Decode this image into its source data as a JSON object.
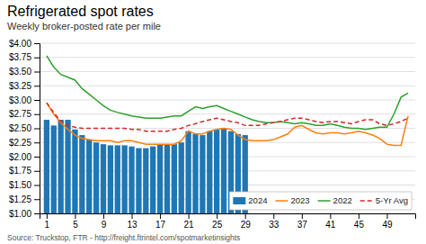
{
  "chart_data": {
    "type": "bar",
    "title": "Refrigerated spot rates",
    "subtitle": "Weekly broker-posted rate per mile",
    "annotations": [
      "Source: Truckstop, FTR - http://freight.ftrintel.com/spotmarketinsights"
    ],
    "x": [
      1,
      2,
      3,
      4,
      5,
      6,
      7,
      8,
      9,
      10,
      11,
      12,
      13,
      14,
      15,
      16,
      17,
      18,
      19,
      20,
      21,
      22,
      23,
      24,
      25,
      26,
      27,
      28,
      29,
      30,
      31,
      32,
      33,
      34,
      35,
      36,
      37,
      38,
      39,
      40,
      41,
      42,
      43,
      44,
      45,
      46,
      47,
      48,
      49,
      50,
      51,
      52
    ],
    "xlim": [
      0,
      53
    ],
    "xticks": [
      1,
      5,
      9,
      13,
      17,
      21,
      25,
      29,
      33,
      37,
      41,
      45,
      49
    ],
    "ylim": [
      1.0,
      4.0
    ],
    "yticks": [
      {
        "value": 1.0,
        "label": "$1.00"
      },
      {
        "value": 1.25,
        "label": "$1.25"
      },
      {
        "value": 1.5,
        "label": "$1.50"
      },
      {
        "value": 1.75,
        "label": "$1.75"
      },
      {
        "value": 2.0,
        "label": "$2.00"
      },
      {
        "value": 2.25,
        "label": "$2.25"
      },
      {
        "value": 2.5,
        "label": "$2.50"
      },
      {
        "value": 2.75,
        "label": "$2.75"
      },
      {
        "value": 3.0,
        "label": "$3.00"
      },
      {
        "value": 3.25,
        "label": "$3.25"
      },
      {
        "value": 3.5,
        "label": "$3.50"
      },
      {
        "value": 3.75,
        "label": "$3.75"
      },
      {
        "value": 4.0,
        "label": "$4.00"
      }
    ],
    "grid": true,
    "legend": "lower right",
    "series": [
      {
        "name": "2024",
        "type": "bar",
        "values": [
          2.65,
          2.55,
          2.65,
          2.65,
          2.48,
          2.38,
          2.3,
          2.25,
          2.22,
          2.2,
          2.2,
          2.2,
          2.18,
          2.15,
          2.15,
          2.18,
          2.22,
          2.22,
          2.22,
          2.25,
          2.45,
          2.4,
          2.38,
          2.45,
          2.48,
          2.5,
          2.45,
          2.4,
          2.38,
          null,
          null,
          null,
          null,
          null,
          null,
          null,
          null,
          null,
          null,
          null,
          null,
          null,
          null,
          null,
          null,
          null,
          null,
          null,
          null,
          null,
          null,
          null
        ]
      },
      {
        "name": "2023",
        "type": "line",
        "line_style": "solid",
        "values": [
          2.95,
          2.75,
          2.6,
          2.48,
          2.38,
          2.32,
          2.3,
          2.28,
          2.28,
          2.28,
          2.25,
          2.28,
          2.28,
          2.25,
          2.22,
          2.22,
          2.22,
          2.22,
          2.22,
          2.28,
          2.45,
          2.4,
          2.4,
          2.45,
          2.48,
          2.5,
          2.48,
          2.38,
          2.3,
          2.28,
          2.28,
          2.28,
          2.3,
          2.35,
          2.4,
          2.52,
          2.55,
          2.48,
          2.42,
          2.4,
          2.42,
          2.42,
          2.4,
          2.42,
          2.45,
          2.42,
          2.38,
          2.32,
          2.22,
          2.2,
          2.2,
          2.72
        ]
      },
      {
        "name": "2022",
        "type": "line",
        "line_style": "solid",
        "values": [
          3.78,
          3.58,
          3.45,
          3.4,
          3.35,
          3.2,
          3.1,
          3.0,
          2.9,
          2.82,
          2.78,
          2.75,
          2.72,
          2.7,
          2.68,
          2.68,
          2.68,
          2.7,
          2.72,
          2.72,
          2.8,
          2.88,
          2.85,
          2.88,
          2.9,
          2.85,
          2.8,
          2.75,
          2.7,
          2.65,
          2.62,
          2.6,
          2.6,
          2.62,
          2.6,
          2.58,
          2.6,
          2.58,
          2.55,
          2.55,
          2.58,
          2.55,
          2.52,
          2.5,
          2.5,
          2.48,
          2.5,
          2.52,
          2.52,
          2.75,
          3.05,
          3.12
        ]
      },
      {
        "name": "5-Yr Avg",
        "type": "line",
        "line_style": "dashed",
        "values": [
          2.95,
          2.78,
          2.62,
          2.55,
          2.52,
          2.5,
          2.5,
          2.5,
          2.5,
          2.5,
          2.5,
          2.5,
          2.48,
          2.48,
          2.45,
          2.45,
          2.45,
          2.45,
          2.48,
          2.5,
          2.55,
          2.58,
          2.62,
          2.65,
          2.68,
          2.65,
          2.62,
          2.6,
          2.55,
          2.55,
          2.55,
          2.58,
          2.6,
          2.62,
          2.65,
          2.68,
          2.68,
          2.65,
          2.62,
          2.6,
          2.62,
          2.62,
          2.6,
          2.58,
          2.62,
          2.65,
          2.65,
          2.58,
          2.55,
          2.58,
          2.62,
          2.68
        ]
      }
    ]
  }
}
